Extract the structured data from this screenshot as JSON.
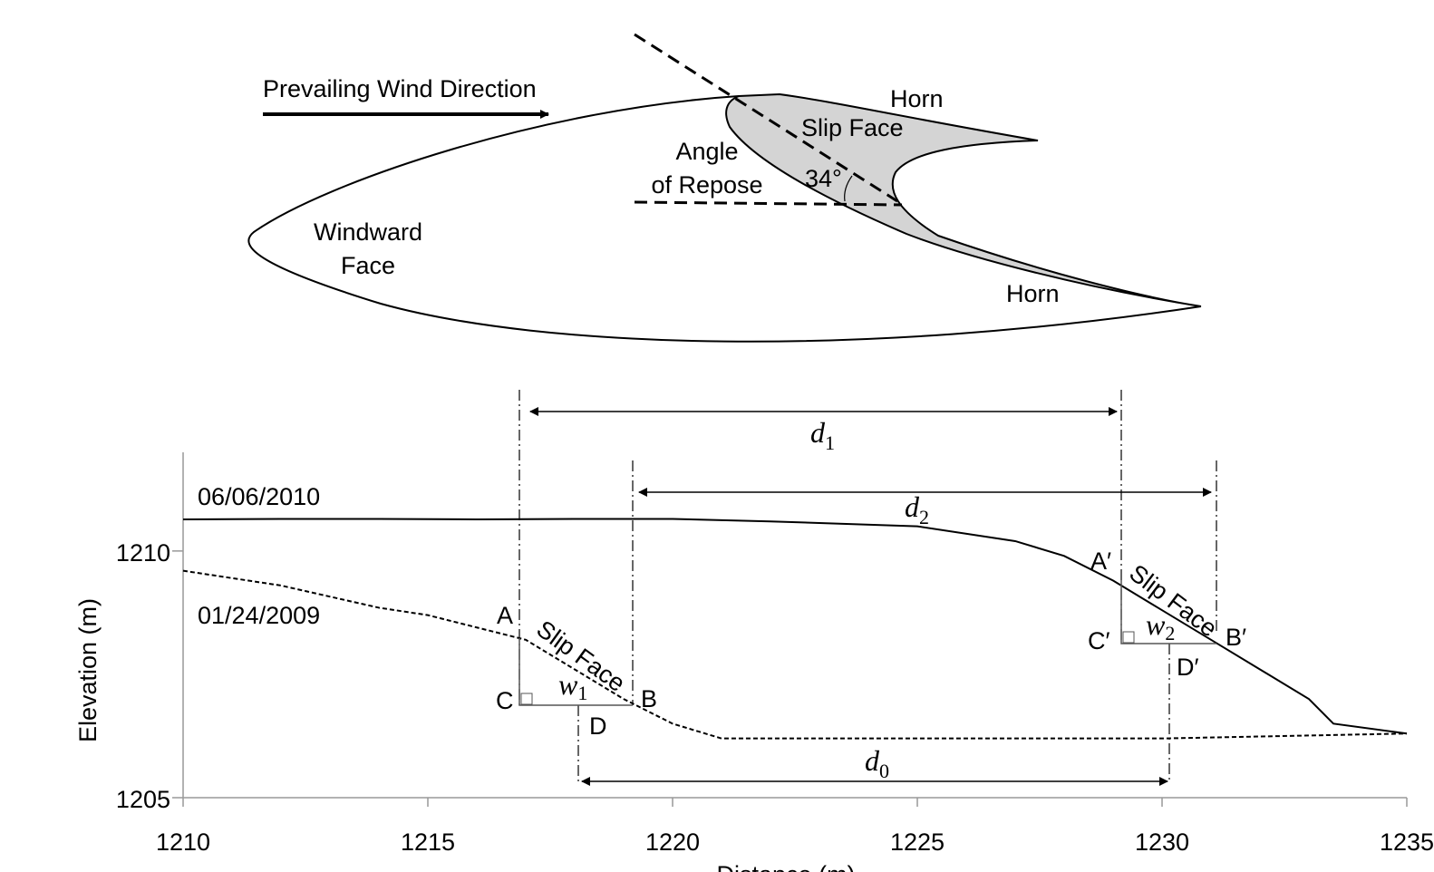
{
  "diagram": {
    "wind_label": "Prevailing Wind Direction",
    "horn_top": "Horn",
    "horn_bottom": "Horn",
    "slip_face": "Slip Face",
    "angle_label": [
      "Angle",
      "of Repose"
    ],
    "angle_value": "34°",
    "windward_label": [
      "Windward",
      "Face"
    ]
  },
  "chart_data": {
    "type": "line",
    "ylabel": "Elevation (m)",
    "xlabel": "Distance (m)",
    "xlim": [
      1210,
      1235
    ],
    "ylim": [
      1205,
      1212
    ],
    "xticks": [
      1210,
      1215,
      1220,
      1225,
      1230,
      1235
    ],
    "yticks": [
      1205,
      1210
    ],
    "series": [
      {
        "name": "06/06/2010",
        "color": "#000000",
        "dashed": false,
        "x": [
          1210,
          1212,
          1214,
          1216,
          1218,
          1220,
          1222,
          1225,
          1227,
          1228,
          1229,
          1230,
          1231,
          1232,
          1233,
          1233.5,
          1235
        ],
        "values": [
          1210.64,
          1210.65,
          1210.65,
          1210.64,
          1210.65,
          1210.65,
          1210.6,
          1210.5,
          1210.2,
          1209.9,
          1209.4,
          1208.8,
          1208.2,
          1207.6,
          1207.0,
          1206.5,
          1206.3
        ]
      },
      {
        "name": "01/24/2009",
        "color": "#000000",
        "dashed": true,
        "x": [
          1210,
          1212,
          1214,
          1215,
          1216,
          1217,
          1218,
          1219,
          1220,
          1221,
          1225,
          1230,
          1235
        ],
        "values": [
          1209.6,
          1209.3,
          1208.85,
          1208.7,
          1208.45,
          1208.2,
          1207.6,
          1207.0,
          1206.5,
          1206.2,
          1206.2,
          1206.2,
          1206.3
        ]
      }
    ],
    "point_labels": [
      "A",
      "B",
      "C",
      "D",
      "A′",
      "B′",
      "C′",
      "D′"
    ],
    "slip_face_labels": [
      "Slip Face",
      "Slip Face"
    ],
    "widths": [
      {
        "symbol": "w",
        "sub": "1"
      },
      {
        "symbol": "w",
        "sub": "2"
      }
    ],
    "distances": [
      {
        "symbol": "d",
        "sub": "0"
      },
      {
        "symbol": "d",
        "sub": "1"
      },
      {
        "symbol": "d",
        "sub": "2"
      }
    ]
  }
}
